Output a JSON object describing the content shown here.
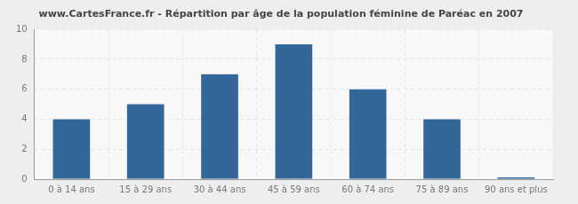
{
  "chart_data": {
    "type": "bar",
    "title": "www.CartesFrance.fr - Répartition par âge de la population féminine de Paréac en 2007",
    "categories": [
      "0 à 14 ans",
      "15 à 29 ans",
      "30 à 44 ans",
      "45 à 59 ans",
      "60 à 74 ans",
      "75 à 89 ans",
      "90 ans et plus"
    ],
    "values": [
      4,
      5,
      7,
      9,
      6,
      4,
      0
    ],
    "color": "#336699",
    "ylim": [
      0,
      10
    ],
    "yticks": [
      0,
      2,
      4,
      6,
      8,
      10
    ],
    "grid": true
  }
}
